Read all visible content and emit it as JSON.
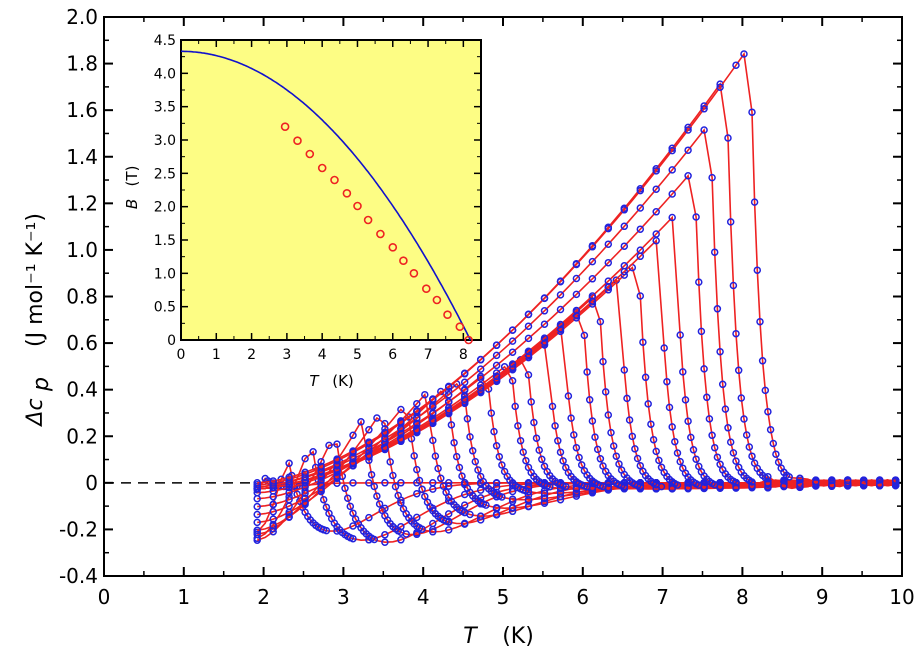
{
  "chart_data": {
    "main": {
      "type": "line",
      "xlabel_var": "T",
      "xlabel_unit": "(K)",
      "ylabel_var": "Δc",
      "ylabel_sub": "p",
      "ylabel_unit": "(J mol⁻¹ K⁻¹)",
      "xlim": [
        0,
        10
      ],
      "ylim": [
        -0.4,
        2.0
      ],
      "xticks": [
        "0",
        "1",
        "2",
        "3",
        "4",
        "5",
        "6",
        "7",
        "8",
        "9",
        "10"
      ],
      "yticks": [
        "-0.4",
        "-0.2",
        "0",
        "0.2",
        "0.4",
        "0.6",
        "0.8",
        "1.0",
        "1.2",
        "1.4",
        "1.6",
        "1.8",
        "2.0"
      ],
      "zero_reference_line": "dashed",
      "marker_color": "#2222dd",
      "line_color": "#ee2222",
      "series": [
        {
          "Tc": 1.95,
          "peak": 0.05,
          "low": -0.04,
          "lowT": 1.92
        },
        {
          "Tc": 2.3,
          "peak": 0.12,
          "low": -0.25,
          "lowT": 2.6
        },
        {
          "Tc": 2.6,
          "peak": 0.18,
          "low": -0.28,
          "lowT": 3.0
        },
        {
          "Tc": 2.9,
          "peak": 0.22,
          "low": -0.29,
          "lowT": 3.3
        },
        {
          "Tc": 3.25,
          "peak": 0.28,
          "low": -0.26,
          "lowT": 3.6
        },
        {
          "Tc": 3.5,
          "peak": 0.32,
          "low": -0.24,
          "lowT": 3.9
        },
        {
          "Tc": 3.8,
          "peak": 0.35,
          "low": -0.2,
          "lowT": 4.2
        },
        {
          "Tc": 4.05,
          "peak": 0.39,
          "low": -0.16,
          "lowT": 4.5
        },
        {
          "Tc": 4.3,
          "peak": 0.42,
          "low": -0.12,
          "lowT": 4.8
        },
        {
          "Tc": 4.5,
          "peak": 0.45,
          "low": -0.08,
          "lowT": 5.0
        },
        {
          "Tc": 4.8,
          "peak": 0.48,
          "low": -0.05,
          "lowT": 5.3
        },
        {
          "Tc": 5.1,
          "peak": 0.52,
          "low": -0.03,
          "lowT": 5.6
        },
        {
          "Tc": 5.3,
          "peak": 0.55,
          "low": -0.03,
          "lowT": 5.8
        },
        {
          "Tc": 5.55,
          "peak": 0.6,
          "low": -0.03,
          "lowT": 6.0
        },
        {
          "Tc": 5.75,
          "peak": 0.68,
          "low": -0.03,
          "lowT": 6.2
        },
        {
          "Tc": 6.0,
          "peak": 0.75,
          "low": -0.03,
          "lowT": 6.5
        },
        {
          "Tc": 6.2,
          "peak": 0.82,
          "low": -0.03,
          "lowT": 6.7
        },
        {
          "Tc": 6.45,
          "peak": 0.88,
          "low": -0.03,
          "lowT": 6.9
        },
        {
          "Tc": 6.7,
          "peak": 0.95,
          "low": -0.03,
          "lowT": 7.1
        },
        {
          "Tc": 6.95,
          "peak": 1.05,
          "low": -0.03,
          "lowT": 7.3
        },
        {
          "Tc": 7.15,
          "peak": 1.15,
          "low": -0.03,
          "lowT": 7.5
        },
        {
          "Tc": 7.4,
          "peak": 1.35,
          "low": -0.02,
          "lowT": 7.7
        },
        {
          "Tc": 7.6,
          "peak": 1.55,
          "low": -0.02,
          "lowT": 7.9
        },
        {
          "Tc": 7.8,
          "peak": 1.75,
          "low": -0.01,
          "lowT": 8.1
        },
        {
          "Tc": 8.1,
          "peak": 1.88,
          "low": 0.0,
          "lowT": 8.4
        }
      ]
    },
    "inset": {
      "type": "line",
      "background": "#fdfd84",
      "xlabel_var": "T",
      "xlabel_unit": "(K)",
      "ylabel_var": "B",
      "ylabel_unit": "(T)",
      "xlim": [
        0,
        8.5
      ],
      "ylim": [
        0,
        4.5
      ],
      "xticks": [
        "0",
        "1",
        "2",
        "3",
        "4",
        "5",
        "6",
        "7",
        "8"
      ],
      "yticks": [
        "0",
        "0.5",
        "1.0",
        "1.5",
        "2.0",
        "2.5",
        "3.0",
        "3.5",
        "4.0",
        "4.5"
      ],
      "fit_line_color": "#1111cc",
      "point_color": "#ee2222",
      "fit": {
        "B0": 4.33,
        "Tc": 8.2
      },
      "points": [
        {
          "x": 2.95,
          "y": 3.2
        },
        {
          "x": 3.3,
          "y": 2.99
        },
        {
          "x": 3.65,
          "y": 2.79
        },
        {
          "x": 4.0,
          "y": 2.58
        },
        {
          "x": 4.35,
          "y": 2.4
        },
        {
          "x": 4.7,
          "y": 2.2
        },
        {
          "x": 5.0,
          "y": 2.01
        },
        {
          "x": 5.3,
          "y": 1.8
        },
        {
          "x": 5.65,
          "y": 1.59
        },
        {
          "x": 6.0,
          "y": 1.39
        },
        {
          "x": 6.3,
          "y": 1.19
        },
        {
          "x": 6.6,
          "y": 1.0
        },
        {
          "x": 6.95,
          "y": 0.77
        },
        {
          "x": 7.25,
          "y": 0.6
        },
        {
          "x": 7.55,
          "y": 0.38
        },
        {
          "x": 7.9,
          "y": 0.2
        },
        {
          "x": 8.15,
          "y": 0.0
        }
      ]
    }
  }
}
